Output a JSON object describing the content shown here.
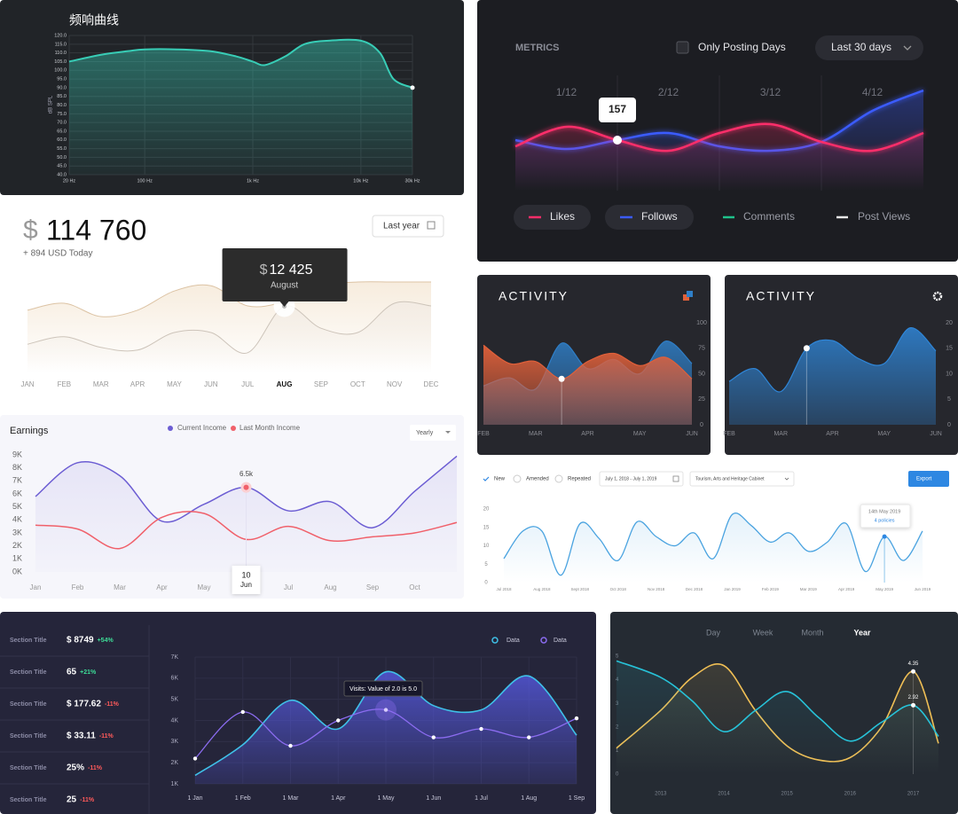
{
  "chart_data": [
    {
      "type": "line",
      "title": "频响曲线",
      "ylabel": "dB SPL",
      "xscale": "log",
      "grid": true,
      "x": [
        20,
        40,
        70,
        100,
        200,
        400,
        700,
        1000,
        1300,
        2000,
        3000,
        5000,
        10000,
        15000,
        20000,
        30000
      ],
      "xlim": [
        20,
        30000
      ],
      "xticks": [
        {
          "value": 20,
          "label": "20 Hz"
        },
        {
          "value": 100,
          "label": "100 Hz"
        },
        {
          "value": 1000,
          "label": "1k Hz"
        },
        {
          "value": 10000,
          "label": "10k Hz"
        },
        {
          "value": 30000,
          "label": "30k Hz"
        }
      ],
      "ylim": [
        40,
        120
      ],
      "yticks": [
        {
          "value": 40,
          "label": "40.0"
        },
        {
          "value": 45,
          "label": "45.0"
        },
        {
          "value": 50,
          "label": "50.0"
        },
        {
          "value": 55,
          "label": "55.0"
        },
        {
          "value": 60,
          "label": "60.0"
        },
        {
          "value": 65,
          "label": "65.0"
        },
        {
          "value": 70,
          "label": "70.0"
        },
        {
          "value": 75,
          "label": "75.0"
        },
        {
          "value": 80,
          "label": "80.0"
        },
        {
          "value": 85,
          "label": "85.0"
        },
        {
          "value": 90,
          "label": "90.0"
        },
        {
          "value": 95,
          "label": "95.0"
        },
        {
          "value": 100,
          "label": "100.0"
        },
        {
          "value": 105,
          "label": "105.0"
        },
        {
          "value": 110,
          "label": "110.0"
        },
        {
          "value": 115,
          "label": "115.0"
        },
        {
          "value": 120,
          "label": "120.0"
        }
      ],
      "series": [
        {
          "color": "#38cdb6",
          "values": [
            105,
            109,
            111,
            112,
            112,
            111,
            108,
            105,
            103,
            108,
            115,
            117,
            117,
            110,
            95,
            90
          ]
        }
      ]
    },
    {
      "type": "line",
      "title": "METRICS",
      "toggle": "Only Posting Days",
      "range": "Last 30 days",
      "x": [
        0,
        0.5,
        1,
        1.5,
        2,
        2.5,
        3,
        3.5,
        4
      ],
      "xlim": [
        0,
        4
      ],
      "xticks": [
        {
          "value": 0.5,
          "label": "1/12"
        },
        {
          "value": 1.5,
          "label": "2/12"
        },
        {
          "value": 2.5,
          "label": "3/12"
        },
        {
          "value": 3.5,
          "label": "4/12"
        }
      ],
      "ylim": [
        100,
        240
      ],
      "series": [
        {
          "name": "Likes",
          "color": "#ff2d6a",
          "values": [
            150,
            172,
            157,
            145,
            165,
            175,
            155,
            145,
            165
          ]
        },
        {
          "name": "Follows",
          "color": "#3b5bff",
          "values": [
            157,
            147,
            157,
            165,
            150,
            145,
            155,
            190,
            213
          ],
          "value_labels": [
            null,
            null,
            "157",
            null,
            null,
            null,
            null,
            null,
            null
          ]
        }
      ],
      "legend_extra": [
        {
          "name": "Comments",
          "color": "#1fc28b"
        },
        {
          "name": "Post Views",
          "color": "#e8e8e8"
        }
      ]
    },
    {
      "type": "line",
      "currency": "$",
      "total": "114 760",
      "change": "+ 894 USD Today",
      "range": "Last year",
      "categories": [
        "JAN",
        "FEB",
        "MAR",
        "APR",
        "MAY",
        "JUN",
        "JUL",
        "AUG",
        "SEP",
        "OCT",
        "NOV",
        "DEC"
      ],
      "selected": 7,
      "ylim": [
        0,
        20000
      ],
      "tooltip_label": "August",
      "series": [
        {
          "color": "#dcc3a4",
          "values": [
            11700,
            13000,
            10500,
            11700,
            15300,
            16300,
            12500,
            13300,
            16300,
            17000,
            17000,
            17000
          ]
        },
        {
          "color": "#cdc4ba",
          "values": [
            5300,
            6700,
            4700,
            4200,
            7500,
            7500,
            3700,
            12425,
            8300,
            7500,
            13000,
            12500
          ],
          "value_labels": [
            null,
            null,
            null,
            null,
            null,
            null,
            null,
            "12 425",
            null,
            null,
            null,
            null
          ]
        }
      ]
    },
    {
      "type": "area",
      "title": "Earnings",
      "range": "Yearly",
      "tooltip": {
        "day": "10",
        "month": "Jun"
      },
      "categories": [
        "Jan",
        "Feb",
        "Mar",
        "Apr",
        "May",
        "Jun",
        "Jul",
        "Aug",
        "Sep",
        "Oct",
        null
      ],
      "ylim": [
        0,
        9000
      ],
      "yticks": [
        {
          "value": 0,
          "label": "0K"
        },
        {
          "value": 1000,
          "label": "1K"
        },
        {
          "value": 2000,
          "label": "2K"
        },
        {
          "value": 3000,
          "label": "3K"
        },
        {
          "value": 4000,
          "label": "4K"
        },
        {
          "value": 5000,
          "label": "5K"
        },
        {
          "value": 6000,
          "label": "6K"
        },
        {
          "value": 7000,
          "label": "7K"
        },
        {
          "value": 8000,
          "label": "8K"
        },
        {
          "value": 9000,
          "label": "9K"
        }
      ],
      "series": [
        {
          "name": "Current Income",
          "color": "#6c5dd3",
          "values": [
            5800,
            8400,
            7400,
            3900,
            5200,
            6500,
            4700,
            5400,
            3400,
            6200,
            8900
          ],
          "value_labels": [
            null,
            null,
            null,
            null,
            null,
            "6.5k",
            null,
            null,
            null,
            null,
            null
          ]
        },
        {
          "name": "Last Month Income",
          "color": "#f0606a",
          "values": [
            3600,
            3300,
            1800,
            4200,
            4500,
            2500,
            3500,
            2400,
            2700,
            3000,
            3800
          ]
        }
      ]
    },
    {
      "type": "area",
      "title": "ACTIVITY",
      "categories": [
        "FEB",
        null,
        "MAR",
        null,
        "APR",
        null,
        "MAY",
        null,
        "JUN"
      ],
      "ylim": [
        0,
        100
      ],
      "yticks": [
        0,
        25,
        50,
        75,
        100
      ],
      "series": [
        {
          "color": "#2f7fc8",
          "values": [
            38,
            46,
            35,
            80,
            55,
            64,
            50,
            82,
            60
          ]
        },
        {
          "color": "#e0603a",
          "values": [
            78,
            60,
            62,
            45,
            62,
            70,
            58,
            66,
            45
          ]
        }
      ]
    },
    {
      "type": "area",
      "title": "ACTIVITY",
      "categories": [
        "FEB",
        null,
        "MAR",
        null,
        "APR",
        null,
        "MAY",
        null,
        "JUN"
      ],
      "ylim": [
        0,
        20
      ],
      "yticks": [
        0,
        5,
        10,
        15,
        20
      ],
      "series": [
        {
          "color": "#2f86d8",
          "values": [
            8.5,
            11,
            6.5,
            15,
            16.5,
            13,
            12,
            19,
            14.5
          ]
        }
      ]
    },
    {
      "type": "area",
      "filters": [
        "New",
        "Amended",
        "Repeated"
      ],
      "date_range": "July 1, 2018 - July 1, 2019",
      "cabinet": "Tourism, Arts and Heritage Cabinet",
      "button": "Export",
      "tooltip": {
        "date": "14th May 2019",
        "text": "4 policies"
      },
      "categories": [
        "Jul 2018",
        null,
        "Aug 2018",
        null,
        "Sept 2018",
        null,
        "Oct 2018",
        null,
        "Nov 2018",
        null,
        "Dec 2018",
        null,
        "Jan 2019",
        null,
        "Feb 2019",
        null,
        "Mar 2019",
        null,
        "Apr 2019",
        null,
        "May 2019",
        null,
        "Jun 2019"
      ],
      "ylim": [
        0,
        20
      ],
      "yticks": [
        0,
        5,
        10,
        15,
        20
      ],
      "series": [
        {
          "color": "#4aa3e0",
          "values": [
            6.5,
            14,
            14,
            2,
            16,
            12,
            6,
            16.5,
            12.5,
            10,
            13.5,
            6.5,
            18.5,
            15.5,
            11,
            13.5,
            8.5,
            11,
            16,
            3,
            12.5,
            6,
            14
          ]
        }
      ]
    },
    {
      "type": "line",
      "grid": true,
      "table": {
        "rows": [
          [
            "Section Title",
            "$ 8749",
            "+54%"
          ],
          [
            "Section Title",
            "65",
            "+21%"
          ],
          [
            "Section Title",
            "$ 177.62",
            "-11%"
          ],
          [
            "Section Title",
            "$ 33.11",
            "-11%"
          ],
          [
            "Section Title",
            "25%",
            "-11%"
          ],
          [
            "Section Title",
            "25",
            "-11%"
          ]
        ]
      },
      "tooltip": "Visits: Value of 2.0 is 5.0",
      "categories": [
        "1 Jan",
        "1 Feb",
        "1 Mar",
        "1 Apr",
        "1 May",
        "1 Jun",
        "1 Jul",
        "1 Aug",
        "1 Sep"
      ],
      "ylim": [
        1000,
        7000
      ],
      "yticks": [
        {
          "value": 1000,
          "label": "1K"
        },
        {
          "value": 2000,
          "label": "2K"
        },
        {
          "value": 3000,
          "label": "3K"
        },
        {
          "value": 4000,
          "label": "4K"
        },
        {
          "value": 5000,
          "label": "5K"
        },
        {
          "value": 6000,
          "label": "6K"
        },
        {
          "value": 7000,
          "label": "7K"
        }
      ],
      "series": [
        {
          "name": "Data",
          "color": "#3fc1e8",
          "values": [
            1400,
            2850,
            4950,
            3600,
            6300,
            4700,
            4500,
            6100,
            3300
          ]
        },
        {
          "name": "Data",
          "color": "#8b6cf0",
          "values": [
            2200,
            4400,
            2800,
            4000,
            4500,
            3200,
            3600,
            3200,
            4100
          ]
        }
      ]
    },
    {
      "type": "line",
      "tabs": [
        "Day",
        "Week",
        "Month",
        "Year"
      ],
      "selected": 3,
      "x": [
        2012.3,
        2013,
        2013.5,
        2014,
        2014.5,
        2015,
        2015.5,
        2016,
        2016.5,
        2017,
        2017.4
      ],
      "xlim": [
        2012.3,
        2017.4
      ],
      "xticks": [
        2013,
        2014,
        2015,
        2016,
        2017
      ],
      "ylim": [
        0,
        5
      ],
      "yticks": [
        0,
        1,
        2,
        3,
        4,
        5
      ],
      "series": [
        {
          "color": "#f0bf55",
          "values": [
            1.1,
            2.7,
            4.1,
            4.6,
            2.7,
            1.2,
            0.6,
            0.7,
            2.0,
            4.35,
            1.3
          ],
          "value_labels": [
            null,
            null,
            null,
            null,
            null,
            null,
            null,
            null,
            null,
            "4.35",
            null
          ]
        },
        {
          "color": "#27c2d8",
          "values": [
            4.8,
            4.1,
            3.1,
            1.8,
            2.7,
            3.5,
            2.4,
            1.4,
            2.2,
            2.92,
            1.6
          ],
          "value_labels": [
            null,
            null,
            null,
            null,
            null,
            null,
            null,
            null,
            null,
            "2.92",
            null
          ]
        }
      ]
    }
  ]
}
